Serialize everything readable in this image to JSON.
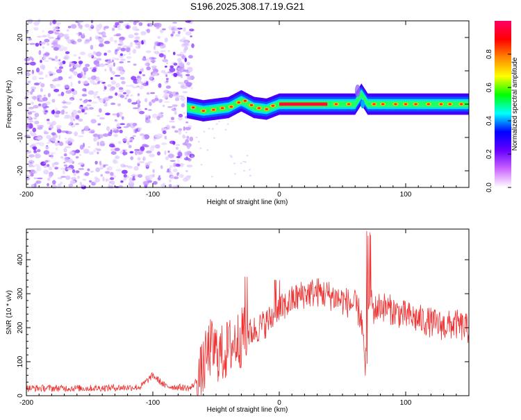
{
  "title": "S196.2025.308.17.19.G21",
  "chart_data": [
    {
      "type": "heatmap",
      "title": "S196.2025.308.17.19.G21",
      "xlabel": "Height of straight line (km)",
      "ylabel": "Frequency (Hz)",
      "xlim": [
        -200,
        150
      ],
      "ylim": [
        -25,
        25
      ],
      "x_ticks": [
        -200,
        -100,
        0,
        100
      ],
      "y_ticks": [
        -20,
        -10,
        0,
        10,
        20
      ],
      "x_tick_labels": [
        "-200",
        "-100",
        "0",
        "100"
      ],
      "y_tick_labels": [
        "-20",
        "-10",
        "0",
        "10",
        "20"
      ],
      "noise_region_x": [
        -200,
        -70
      ],
      "signal_line": {
        "x": [
          -73,
          -60,
          -50,
          -40,
          -30,
          -20,
          -10,
          0,
          10,
          20,
          30,
          40,
          50,
          60,
          65,
          70,
          80,
          90,
          100,
          110,
          120,
          130,
          140,
          150
        ],
        "y": [
          -1,
          -2,
          -1.5,
          -1,
          1,
          -1,
          -1.5,
          0,
          0,
          0,
          0,
          0,
          0,
          0,
          3,
          0,
          0,
          0,
          0,
          0,
          0,
          0,
          0,
          0
        ]
      },
      "colorbar": {
        "label": "Normalized spectral amplitude",
        "range": [
          0,
          1
        ],
        "ticks": [
          0.0,
          0.2,
          0.4,
          0.6,
          0.8
        ],
        "tick_labels": [
          "0.0",
          "0.2",
          "0.4",
          "0.6",
          "0.8"
        ],
        "colors": [
          "#ffffff",
          "#cc66ff",
          "#6600ff",
          "#0000ff",
          "#00ffff",
          "#00ff00",
          "#ffff00",
          "#ff8800",
          "#ff0000",
          "#ff0066"
        ]
      }
    },
    {
      "type": "line",
      "xlabel": "Height of straight line (km)",
      "ylabel": "SNR (10 * v/v)",
      "xlim": [
        -200,
        150
      ],
      "ylim": [
        0,
        490
      ],
      "x_ticks": [
        -200,
        -100,
        0,
        100
      ],
      "y_ticks": [
        0,
        100,
        200,
        300,
        400
      ],
      "x_tick_labels": [
        "-200",
        "-100",
        "0",
        "100"
      ],
      "y_tick_labels": [
        "0",
        "100",
        "200",
        "300",
        "400"
      ],
      "color": "#ee3333",
      "series": [
        {
          "name": "SNR",
          "x": [
            -200,
            -150,
            -110,
            -100,
            -90,
            -70,
            -62,
            -55,
            -45,
            -35,
            -25,
            -10,
            0,
            10,
            20,
            30,
            40,
            50,
            60,
            65,
            68,
            70,
            75,
            80,
            90,
            100,
            110,
            120,
            130,
            140,
            150
          ],
          "y": [
            22,
            22,
            25,
            60,
            28,
            22,
            60,
            140,
            120,
            160,
            180,
            215,
            250,
            280,
            300,
            305,
            295,
            280,
            265,
            230,
            70,
            300,
            250,
            265,
            250,
            235,
            225,
            215,
            205,
            210,
            195
          ]
        }
      ]
    }
  ]
}
